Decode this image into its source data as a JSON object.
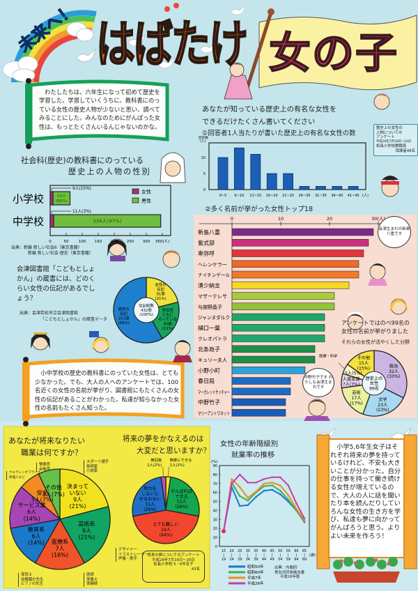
{
  "header": {
    "rainbow_text": "未来へ！",
    "title": "はばたけ",
    "flag_text": "女の子"
  },
  "intro": {
    "text": "わたしたちは、六年生になって初めて歴史を学習した。学習していくうちに、教科書にのっている女性の歴史人物が少ないと思い、調べてみることにした。みんなのためにがんばった女性は、もっとたくさんいるんじゃないのかな。"
  },
  "textbook": {
    "title_line1": "社会科(歴史)の教科書にのっている",
    "title_line2": "歴史上の人物の性別",
    "source_line1": "出典：新編 新しい社会6（東京書籍）",
    "source_line2": "新編 新しい社会 歴史（東京書籍）"
  },
  "library": {
    "question": "会津図書館「こどもとしょかん」の蔵書には、どのくらい女性の伝記があるでしょう？",
    "source_line1": "出典：会津若松市立会津図書館",
    "source_line2": "「こどもとしょかん」の蔵書データ"
  },
  "summary": {
    "text": "小中学校の歴史の教科書にのっていた女性は、とても少なかった。でも、大人の人へのアンケートでは、100名近くの女性の名前が挙がり、図書館にもたくさんの女性の伝記があることがわかった。私達が知らなかった女性の名前もたくさん知った。"
  },
  "survey": {
    "question_line1": "あなたが知っている歴史上の有名な女性を",
    "question_line2": "できるだけたくさん書いてください",
    "q1_title": "①回答者1人当たりが書いた歴史上の有名な女性の数",
    "q2_title": "②多く名前が挙がった女性トップ18",
    "note_lines": [
      "歴史上の女性の",
      "人物についての",
      "アンケート",
      "平成28年7月18日～20日",
      "松長小学校教職員",
      "保護者48名"
    ],
    "total_line1": "アンケートではのべ99名の",
    "total_line2": "女性の名前が挙がりました",
    "fields_title": "それらの女性が活やくした分野"
  },
  "bubbles": {
    "yae": "会津生まれの新島八重です",
    "takeko": "中野竹子です わたしも会津生まれです"
  },
  "jobs": {
    "title_line1": "あなたが将来なりたい",
    "title_line2": "職業は何ですか？",
    "notes": {
      "other": [
        "スポーツ選手",
        "発明家",
        "小説家"
      ],
      "service": [
        "ウエディングプランナー",
        "料理人など"
      ],
      "security": [
        "警察官",
        "自衛官"
      ],
      "education": [
        "保育士",
        "幼稚園の先生",
        "ピアノの先生"
      ],
      "medical": [
        "医師",
        "栄養士",
        "保健師"
      ],
      "arts": [
        "デザイナー",
        "イラストレーター",
        "声優・歌手"
      ]
    }
  },
  "dream": {
    "title_line1": "将来の夢をかなえるのは",
    "title_line2": "大変だと思いますか？",
    "note_lines": [
      "将来の夢についてのアンケート",
      "平成28年7月18日～20日",
      "松長小学校 5・6年女子",
      "43名"
    ]
  },
  "employment": {
    "title_line1": "女性の年齢階級別",
    "title_line2": "就業率の推移",
    "source_lines": [
      "出典：内閣府",
      "男女共同参画白書",
      "平成26年版"
    ]
  },
  "conclusion": {
    "text": "小学5,6年生女子はそれぞれ将来の夢を持っているけれど、不安も大きいことが分かった。自分の仕事を持って働き続ける女性が増えているので、大人の人に話を聞いたり本を読んだりしていろんな女性の生き方を学び、私達も夢に向かってがんばろうと思う。よりよい未来を作ろう！"
  },
  "chart_data": [
    {
      "type": "bar",
      "orientation": "horizontal",
      "stacked": true,
      "title": "社会科(歴史)の教科書にのっている歴史上の人物の性別",
      "categories": [
        "小学校",
        "中学校"
      ],
      "series": [
        {
          "name": "女性",
          "color": "#a8307a",
          "values": [
            9,
            11
          ],
          "labels": [
            "9人(15%)",
            "11人(3%)"
          ]
        },
        {
          "name": "男性",
          "color": "#6fbf3f",
          "values": [
            53,
            334
          ],
          "labels": [
            "53人(85%)",
            "334人(97%)"
          ]
        }
      ],
      "xlabel": "(人)",
      "xticks": [
        0,
        50,
        100,
        150,
        200,
        250,
        300,
        350
      ],
      "xlim": [
        0,
        350
      ],
      "legend_position": "top-right"
    },
    {
      "type": "pie",
      "title": "会津図書館「こどもとしょかん」の伝記",
      "unit": "冊",
      "center_label": [
        "伝記総数",
        "432冊",
        "(100%)"
      ],
      "slices": [
        {
          "label": "女性の伝記",
          "lines": [
            "女性の",
            "伝記"
          ],
          "value": 91,
          "percent": "21%",
          "color": "#f2e03a"
        },
        {
          "label": "男女ともにのっている伝記",
          "lines": [
            "男女性",
            "ともに",
            "のっている"
          ],
          "value": 90,
          "percent": "21%",
          "color": "#17a35b"
        },
        {
          "label": "男性の伝記",
          "lines": [
            "男性の",
            "伝記"
          ],
          "value": 251,
          "percent": "58%",
          "color": "#1f7fcf"
        }
      ]
    },
    {
      "type": "bar",
      "title": "①回答者1人当たりが書いた歴史上の有名な女性の数",
      "categories": [
        "0~5",
        "6~10",
        "11~15",
        "16~20",
        "21~25",
        "26~30",
        "31~35",
        "36~40",
        "41~45"
      ],
      "values": [
        10,
        13,
        11,
        5,
        5,
        1,
        1,
        1,
        1
      ],
      "xlabel": "(人)",
      "ylabel": "回答数(人)",
      "yticks": [
        0,
        5,
        10
      ],
      "ylim": [
        0,
        14.5
      ],
      "color": "#1d5fb4",
      "grid": false
    },
    {
      "type": "bar",
      "orientation": "horizontal",
      "title": "②多く名前が挙がった女性トップ18",
      "categories": [
        "新島八重",
        "紫式部",
        "卑弥呼",
        "ヘレンケラー",
        "ナイチンゲール",
        "清少納言",
        "マザーテレサ",
        "与謝野晶子",
        "ジャンヌダルク",
        "樋口一葉",
        "クレオパトラ",
        "北条政子",
        "キュリー夫人",
        "小野小町",
        "春日局",
        "マーガレットサッチャー",
        "中野竹子",
        "マリーアントワネット"
      ],
      "values": [
        29,
        28,
        27,
        26,
        26,
        24,
        21,
        21,
        19,
        19,
        19,
        17,
        17,
        15,
        12,
        12,
        11,
        11
      ],
      "colors": [
        "#7b2a8c",
        "#cc2f7e",
        "#e2343c",
        "#ef6a2a",
        "#f07a2a",
        "#f6d824",
        "#a6cc3a",
        "#92c43a",
        "#1fa868",
        "#1fa868",
        "#1fa870",
        "#1f8f48",
        "#1f8f48",
        "#2aa2dc",
        "#1c6cc2",
        "#1c6cc2",
        "#1a5cb8",
        "#1a5cb8"
      ],
      "xticks": [
        0,
        10,
        20,
        30
      ],
      "xlabel": "(人)",
      "xlim": [
        0,
        32
      ]
    },
    {
      "type": "pie",
      "title": "それらの女性が活やくした分野",
      "unit": "人",
      "center_label": [
        "歴史上の",
        "女性",
        "99名"
      ],
      "slices": [
        {
          "label": "政治",
          "lines": [
            "政治"
          ],
          "value": 32,
          "percent": "33%",
          "color": "#cdb5e3"
        },
        {
          "label": "文学",
          "lines": [
            "文学"
          ],
          "value": 23,
          "percent": "23%",
          "color": "#a9d9f2"
        },
        {
          "label": "芸術",
          "lines": [
            "芸術"
          ],
          "value": 17,
          "percent": "17%",
          "color": "#e9f29e"
        },
        {
          "label": "人道支援",
          "lines": [
            "人道支援"
          ],
          "value": 7,
          "percent": "7%",
          "color": "#e6d5ee"
        },
        {
          "label": "医療・科学",
          "lines": [
            "医療・科学"
          ],
          "value": 5,
          "percent": "5%",
          "color": "#faf3c8"
        },
        {
          "label": "その他",
          "lines": [
            "その他"
          ],
          "value": 15,
          "percent": "15%",
          "color": "#f5e23e"
        }
      ]
    },
    {
      "type": "pie",
      "title": "あなたが将来なりたい職業は何ですか？",
      "unit": "人",
      "slices": [
        {
          "label": "決まっていない",
          "lines": [
            "決まって",
            "いない"
          ],
          "value": 9,
          "percent": "21%",
          "color": "#f2e21e"
        },
        {
          "label": "芸術系",
          "lines": [
            "芸術系"
          ],
          "value": 9,
          "percent": "21%",
          "color": "#12a463"
        },
        {
          "label": "医療系",
          "lines": [
            "医療系"
          ],
          "value": 7,
          "percent": "16%",
          "color": "#f2542a"
        },
        {
          "label": "教育系",
          "lines": [
            "教育系"
          ],
          "value": 6,
          "percent": "14%",
          "color": "#1b79c9"
        },
        {
          "label": "サービス業",
          "lines": [
            "サービス業"
          ],
          "value": 6,
          "percent": "14%",
          "color": "#a845b5"
        },
        {
          "label": "保安",
          "lines": [
            "保安"
          ],
          "value": 3,
          "percent": "7%",
          "color": "#f58a25"
        },
        {
          "label": "その他",
          "lines": [
            "その他"
          ],
          "value": 3,
          "percent": "7%",
          "color": "#63c247"
        }
      ]
    },
    {
      "type": "pie",
      "title": "将来の夢をかなえるのは大変だと思いますか？",
      "unit": "人",
      "slices": [
        {
          "label": "簡単にできる",
          "lines": [
            "簡単にできる"
          ],
          "value": 1,
          "percent": "2%",
          "color": "#f2e21e"
        },
        {
          "label": "がんばればできる",
          "lines": [
            "がんばれば",
            "できる"
          ],
          "value": 11,
          "percent": "26%",
          "color": "#15a650"
        },
        {
          "label": "とても難しい",
          "lines": [
            "とても難しい"
          ],
          "value": 19,
          "percent": "44%",
          "color": "#f2462e"
        },
        {
          "label": "努力をしないとかなわない",
          "lines": [
            "努力を",
            "しないと",
            "かなわない"
          ],
          "value": 11,
          "percent": "26%",
          "color": "#1f6fc6"
        },
        {
          "label": "無回答",
          "lines": [
            "無回答"
          ],
          "value": 1,
          "percent": "2%",
          "color": "#b455c4"
        }
      ]
    },
    {
      "type": "line",
      "title": "女性の年齢階級別就業率の推移",
      "x": [
        "15~19",
        "20~24",
        "25~29",
        "30~34",
        "35~39",
        "40~44",
        "45~49",
        "50~54",
        "55~59",
        "60~64",
        "65~69"
      ],
      "xlabel": "(歳)",
      "ylabel": "(%)",
      "yticks": [
        0,
        10,
        20,
        30,
        40,
        50,
        60,
        70,
        80,
        90
      ],
      "ylim": [
        0,
        90
      ],
      "legend_position": "bottom",
      "series": [
        {
          "name": "昭和50年",
          "color": "#1b74d0",
          "values": [
            17,
            66,
            45,
            46,
            55,
            62,
            63,
            58,
            50,
            40,
            27
          ]
        },
        {
          "name": "昭和60年",
          "color": "#3ab04a",
          "values": [
            17,
            71,
            56,
            51,
            60,
            67,
            68,
            62,
            52,
            40,
            28
          ]
        },
        {
          "name": "平成7年",
          "color": "#f08a20",
          "values": [
            16,
            75,
            66,
            54,
            61,
            70,
            71,
            68,
            57,
            42,
            29
          ]
        },
        {
          "name": "平成26年",
          "color": "#c83ca8",
          "values": [
            17,
            70,
            80,
            71,
            71,
            75,
            77,
            77,
            68,
            48,
            31
          ]
        }
      ]
    }
  ]
}
